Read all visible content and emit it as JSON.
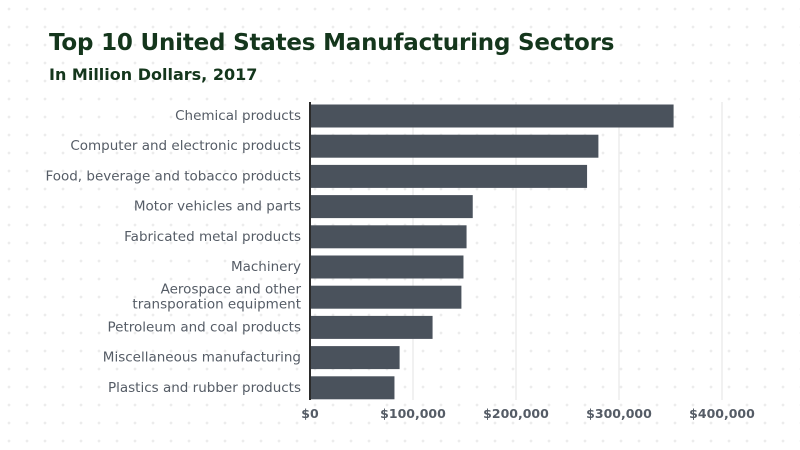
{
  "chart_data": {
    "type": "bar",
    "orientation": "horizontal",
    "title": "Top 10 United States Manufacturing Sectors",
    "subtitle": "In Million Dollars, 2017",
    "categories": [
      "Chemical products",
      "Computer and electronic products",
      "Food, beverage and tobacco products",
      "Motor vehicles and parts",
      "Fabricated metal products",
      "Machinery",
      "Aerospace and other\ntransporation equipment",
      "Petroleum and coal  products",
      "Miscellaneous  manufacturing",
      "Plastics and rubber products"
    ],
    "values": [
      353000,
      280000,
      269000,
      158000,
      152000,
      149000,
      147000,
      119000,
      87000,
      82000
    ],
    "xlim": [
      0,
      400000
    ],
    "xticks": [
      0,
      100000,
      200000,
      300000,
      400000
    ],
    "xtick_labels": [
      "$0",
      "$100,000",
      "$200,000",
      "$300,000",
      "$400,000"
    ],
    "grid": true,
    "colors": {
      "bar": "#4a525c",
      "grid": "#e3e3e3",
      "axis": "#2b2b2b",
      "title": "#14361c"
    }
  }
}
